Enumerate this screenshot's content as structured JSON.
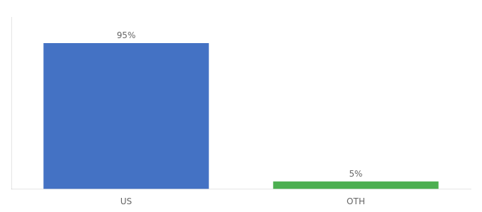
{
  "chart_data": {
    "type": "bar",
    "categories": [
      "US",
      "OTH"
    ],
    "values": [
      95,
      5
    ],
    "value_labels": [
      "95%",
      "5%"
    ],
    "colors": [
      "#4472c4",
      "#4caf50"
    ],
    "ylim": [
      0,
      112
    ],
    "grid": false,
    "data_labels": true,
    "tick_labels": "x"
  }
}
